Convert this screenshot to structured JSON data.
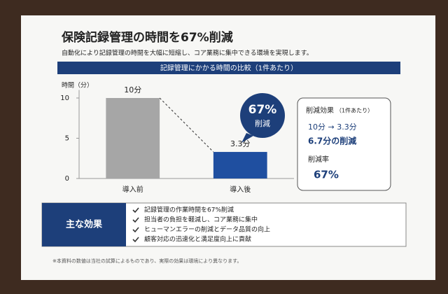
{
  "header": {
    "title": "保険記録管理の時間を67%削減",
    "subtitle": "自動化により記録管理の時間を大幅に短縮し、コア業務に集中できる環境を実現します。"
  },
  "chart_data": {
    "type": "bar",
    "title": "記録管理にかかる時間の比較（1件あたり）",
    "y_label": "時間（分）",
    "categories": [
      "導入前",
      "導入後"
    ],
    "values": [
      10,
      3.3
    ],
    "value_labels": [
      "10分",
      "3.3分"
    ],
    "colors": [
      "#a6a6a6",
      "#1f4fa0"
    ],
    "ylim": [
      0,
      11
    ],
    "yticks": [
      0,
      5,
      10
    ],
    "grid": false
  },
  "badge": {
    "value": "67%",
    "label": "削減"
  },
  "summary": {
    "title": "削減効果",
    "note": "（1件あたり）",
    "change": "10分 → 3.3分",
    "reduction": "6.7分の削減",
    "rate_title": "削減率",
    "rate": "67%"
  },
  "effects": {
    "title": "主な効果",
    "items": [
      "記録管理の作業時間を67%削減",
      "担当者の負担を軽減し、コア業務に集中",
      "ヒューマンエラーの削減とデータ品質の向上",
      "顧客対応の迅速化と満足度向上に貢献"
    ]
  },
  "footnote": "※本資料の数値は当社の試算によるものであり、実際の効果は環境により異なります。"
}
